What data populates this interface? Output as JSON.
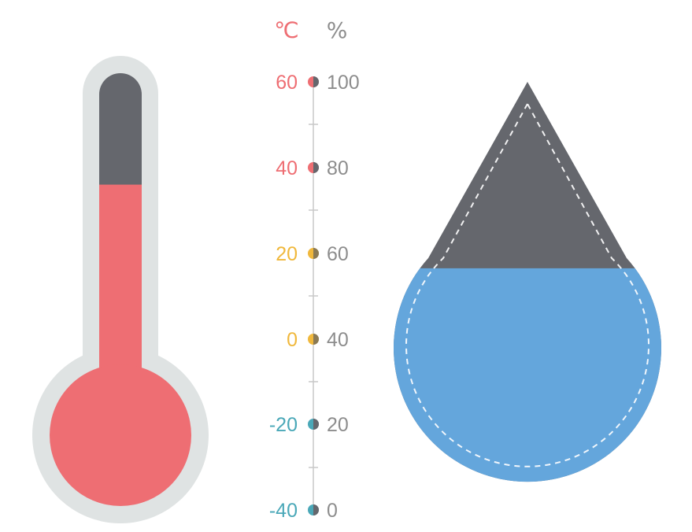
{
  "units": {
    "temperature": "℃",
    "humidity": "%"
  },
  "scale": {
    "temperature_labels": [
      "60",
      "40",
      "20",
      "0",
      "-20",
      "-40"
    ],
    "humidity_labels": [
      "100",
      "80",
      "60",
      "40",
      "20",
      "0"
    ],
    "temperature_label_colors": [
      "#ee6e73",
      "#ee6e73",
      "#f0b83c",
      "#f0b83c",
      "#4aa8b8",
      "#4aa8b8"
    ]
  },
  "thermometer": {
    "value_celsius": 36,
    "min": -40,
    "max": 60
  },
  "humidity_drop": {
    "value_percent": 58,
    "min": 0,
    "max": 100
  },
  "colors": {
    "thermometer_fill": "#ee6e73",
    "empty_fill": "#65676d",
    "casing": "#dfe3e3",
    "water": "#64a6dc",
    "percent_label": "#8d8d8d",
    "axis_line": "#c8c8c8"
  }
}
